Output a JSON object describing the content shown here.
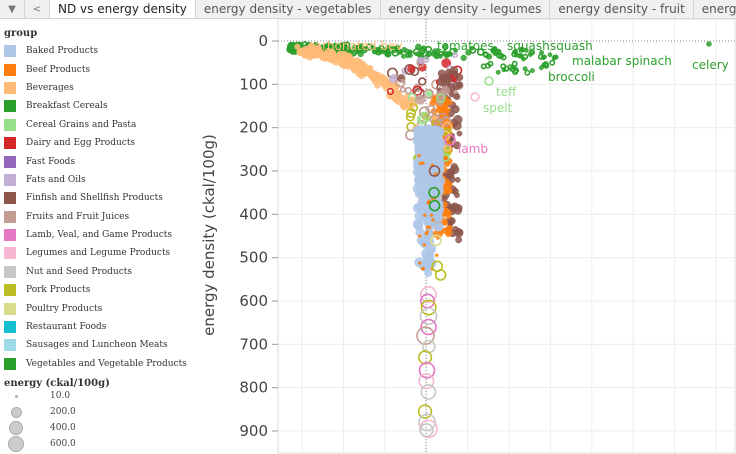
{
  "tabs": {
    "menu_icon": "dropdown-arrow-icon",
    "back_icon": "chevron-left-icon",
    "items": [
      "ND vs energy density",
      "energy density - vegetables",
      "energy density - legumes",
      "energy density - fruit",
      "energy de"
    ]
  },
  "legend": {
    "title": "group",
    "items": [
      {
        "label": "Baked Products",
        "color": "#aec7e8"
      },
      {
        "label": "Beef Products",
        "color": "#ff7f0e"
      },
      {
        "label": "Beverages",
        "color": "#ffbb78"
      },
      {
        "label": "Breakfast Cereals",
        "color": "#2ca02c"
      },
      {
        "label": "Cereal Grains and Pasta",
        "color": "#98df8a"
      },
      {
        "label": "Dairy and Egg Products",
        "color": "#d62728"
      },
      {
        "label": "Fast Foods",
        "color": "#9467bd"
      },
      {
        "label": "Fats and Oils",
        "color": "#c5b0d5"
      },
      {
        "label": "Finfish and Shellfish Products",
        "color": "#8c564b"
      },
      {
        "label": "Fruits and Fruit Juices",
        "color": "#c49c94"
      },
      {
        "label": "Lamb, Veal, and Game Products",
        "color": "#e377c2"
      },
      {
        "label": "Legumes and Legume Products",
        "color": "#f7b6d2"
      },
      {
        "label": "Nut and Seed Products",
        "color": "#c7c7c7"
      },
      {
        "label": "Pork Products",
        "color": "#bcbd22"
      },
      {
        "label": "Poultry Products",
        "color": "#dbdb8d"
      },
      {
        "label": "Restaurant Foods",
        "color": "#17becf"
      },
      {
        "label": "Sausages and Luncheon Meats",
        "color": "#9edae5"
      },
      {
        "label": "Vegetables and Vegetable Products",
        "color": "#2ca02c"
      }
    ]
  },
  "size_legend": {
    "title": "energy  (ckal/100g)",
    "items": [
      "10.0",
      "200.0",
      "400.0",
      "600.0"
    ]
  },
  "chart_data": {
    "type": "scatter",
    "ylabel": "energy density (ckal/100g)",
    "y_reversed": true,
    "ylim": [
      0,
      900
    ],
    "yticks": [
      "0",
      "100",
      "200",
      "300",
      "400",
      "500",
      "600",
      "700",
      "800",
      "900"
    ],
    "grid": true,
    "reference_lines": [
      "x dotted",
      "y=0 dotted"
    ],
    "annotations": [
      {
        "label": "carbonated bev",
        "energy": 5,
        "group": "Beverages"
      },
      {
        "label": "tomatoes",
        "energy": 18,
        "group": "Vegetables and Vegetable Products"
      },
      {
        "label": "squash",
        "energy": 16,
        "group": "Vegetables and Vegetable Products"
      },
      {
        "label": "squash",
        "energy": 16,
        "group": "Vegetables and Vegetable Products"
      },
      {
        "label": "malabar spinach",
        "energy": 19,
        "group": "Vegetables and Vegetable Products"
      },
      {
        "label": "broccoli",
        "energy": 34,
        "group": "Vegetables and Vegetable Products"
      },
      {
        "label": "celery",
        "energy": 14,
        "group": "Vegetables and Vegetable Products"
      },
      {
        "label": "teff",
        "energy": 101,
        "group": "Cereal Grains and Pasta"
      },
      {
        "label": "spelt",
        "energy": 127,
        "group": "Cereal Grains and Pasta"
      },
      {
        "label": "lamb",
        "energy": 231,
        "group": "Lamb, Veal, and Game Products"
      }
    ]
  }
}
